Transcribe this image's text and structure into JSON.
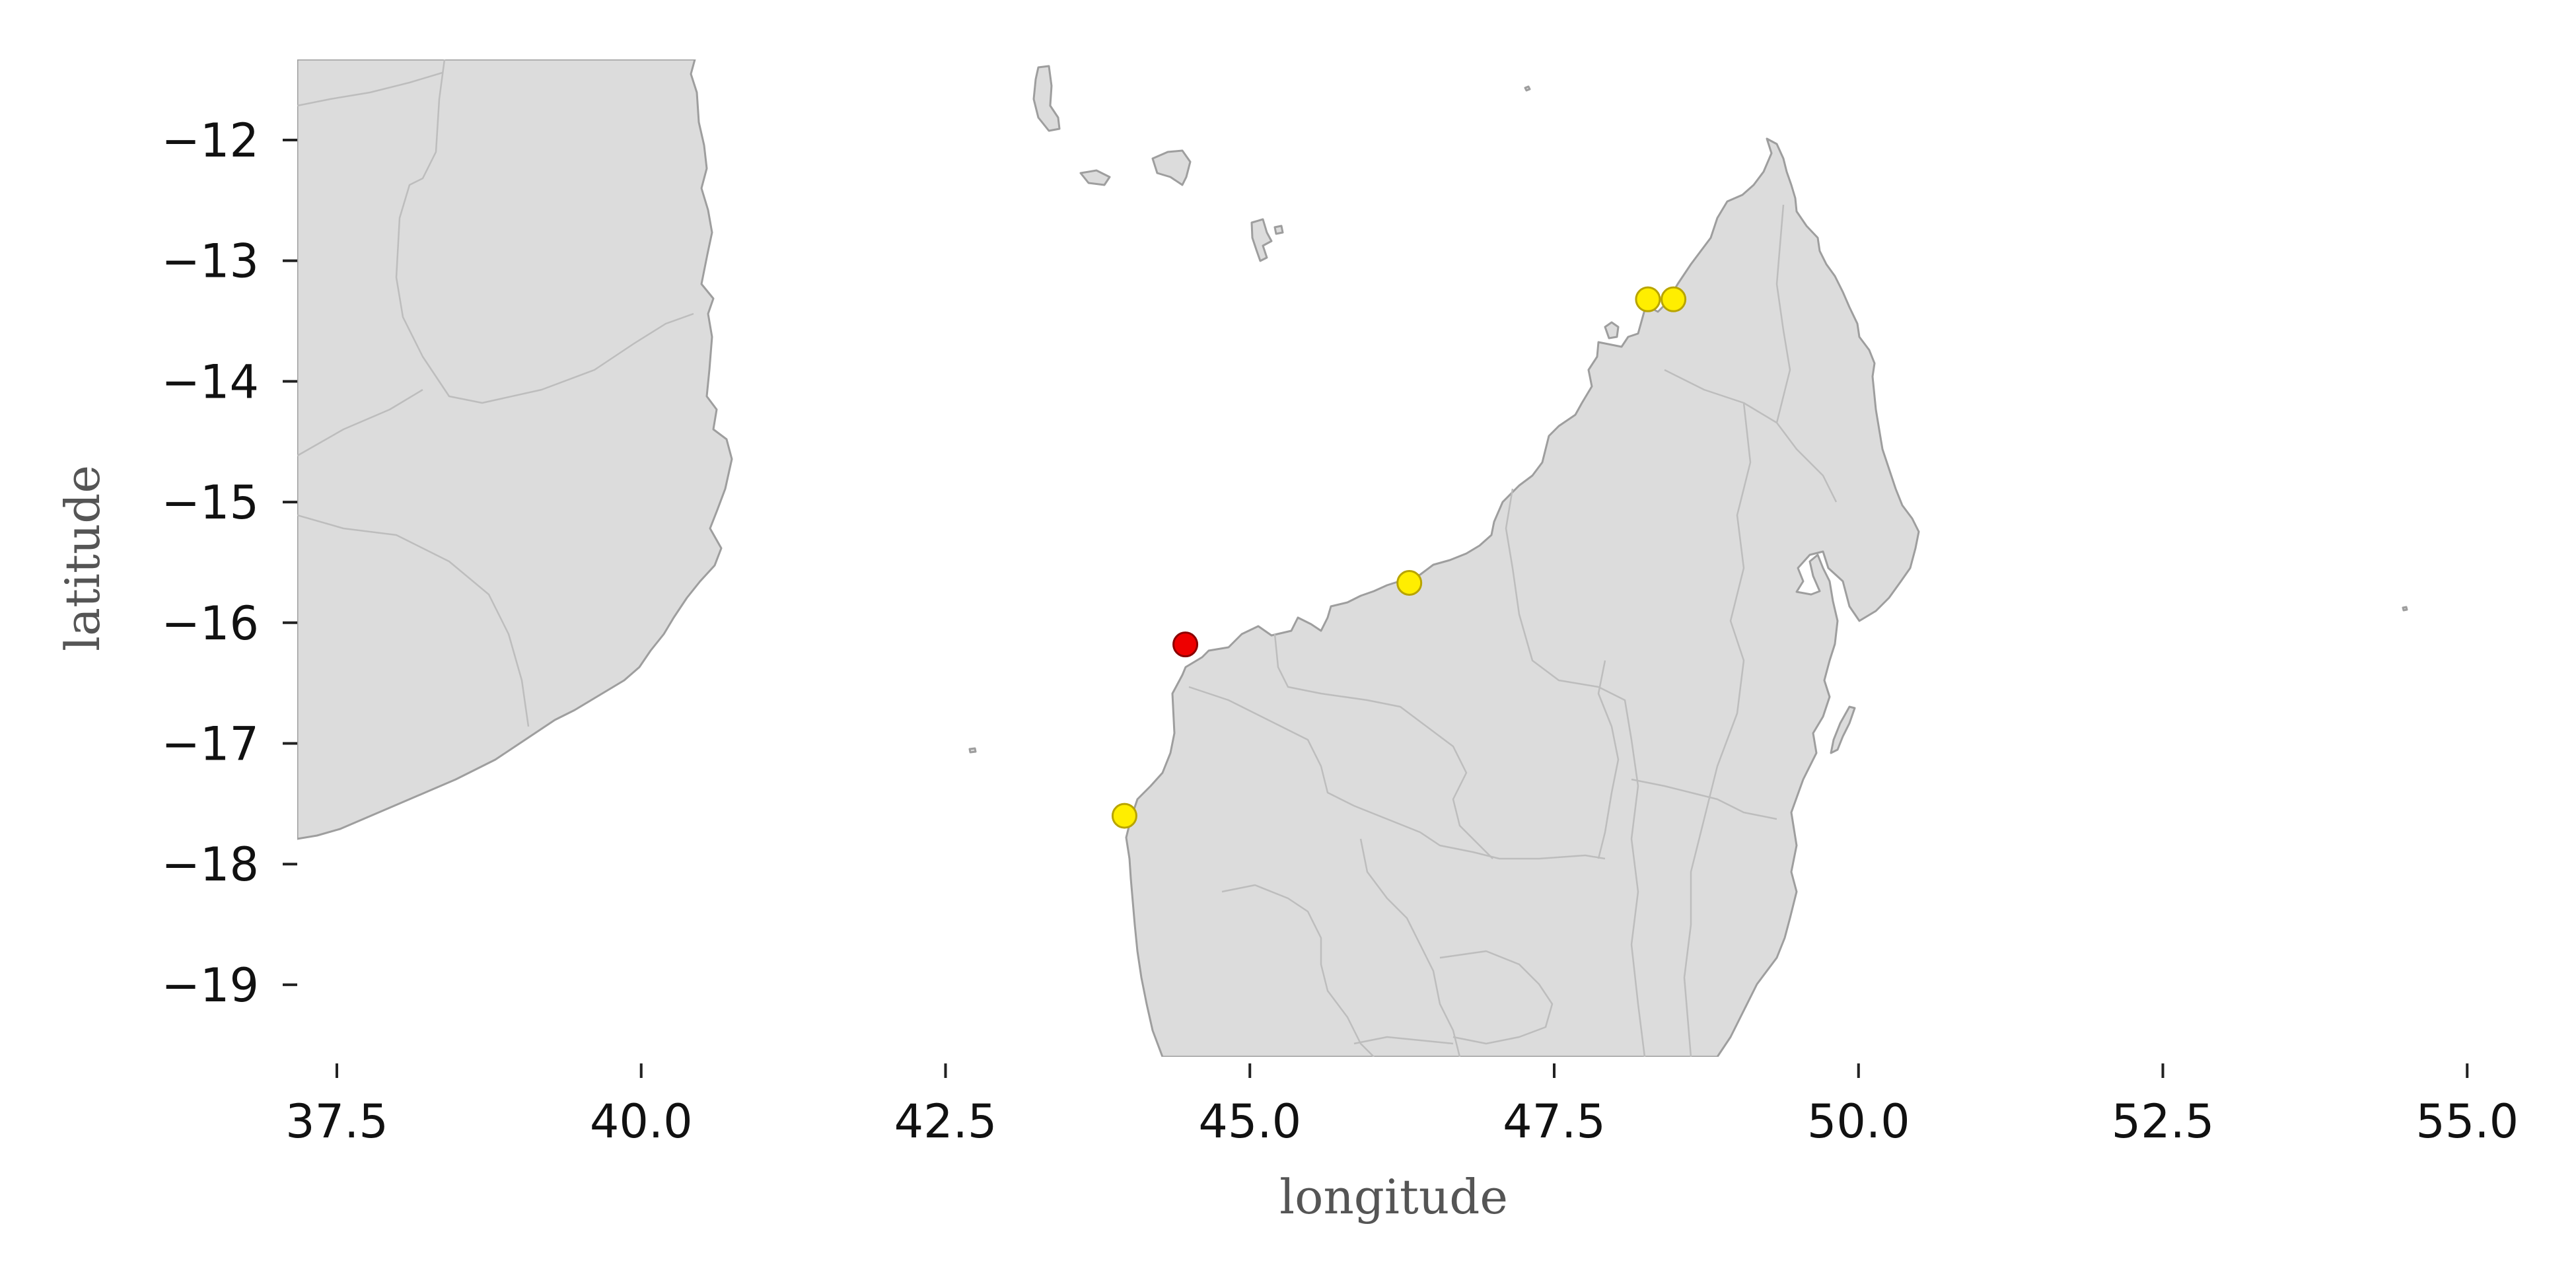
{
  "map": {
    "xlabel": "longitude",
    "ylabel": "latitude",
    "xlim": [
      37.1,
      55.2
    ],
    "ylim": [
      -19.6,
      -11.3
    ],
    "x_ticks": [
      {
        "value": 37.5,
        "label": "37.5"
      },
      {
        "value": 40.0,
        "label": "40.0"
      },
      {
        "value": 42.5,
        "label": "42.5"
      },
      {
        "value": 45.0,
        "label": "45.0"
      },
      {
        "value": 47.5,
        "label": "47.5"
      },
      {
        "value": 50.0,
        "label": "50.0"
      },
      {
        "value": 52.5,
        "label": "52.5"
      },
      {
        "value": 55.0,
        "label": "55.0"
      }
    ],
    "y_ticks": [
      {
        "value": -12,
        "label": "−12"
      },
      {
        "value": -13,
        "label": "−13"
      },
      {
        "value": -14,
        "label": "−14"
      },
      {
        "value": -15,
        "label": "−15"
      },
      {
        "value": -16,
        "label": "−16"
      },
      {
        "value": -17,
        "label": "−17"
      },
      {
        "value": -18,
        "label": "−18"
      },
      {
        "value": -19,
        "label": "−19"
      }
    ],
    "land_color": "#dcdcdc",
    "coast_color": "#9e9e9e",
    "border_color": "#bdbdbd",
    "points": [
      {
        "lon": 48.27,
        "lat": -13.32,
        "color": "#ffee00",
        "edge": "#b8a400"
      },
      {
        "lon": 48.48,
        "lat": -13.32,
        "color": "#ffee00",
        "edge": "#b8a400"
      },
      {
        "lon": 46.31,
        "lat": -15.67,
        "color": "#ffee00",
        "edge": "#b8a400"
      },
      {
        "lon": 44.47,
        "lat": -16.18,
        "color": "#ee0000",
        "edge": "#8a0000"
      },
      {
        "lon": 43.97,
        "lat": -17.6,
        "color": "#ffee00",
        "edge": "#b8a400"
      }
    ]
  }
}
